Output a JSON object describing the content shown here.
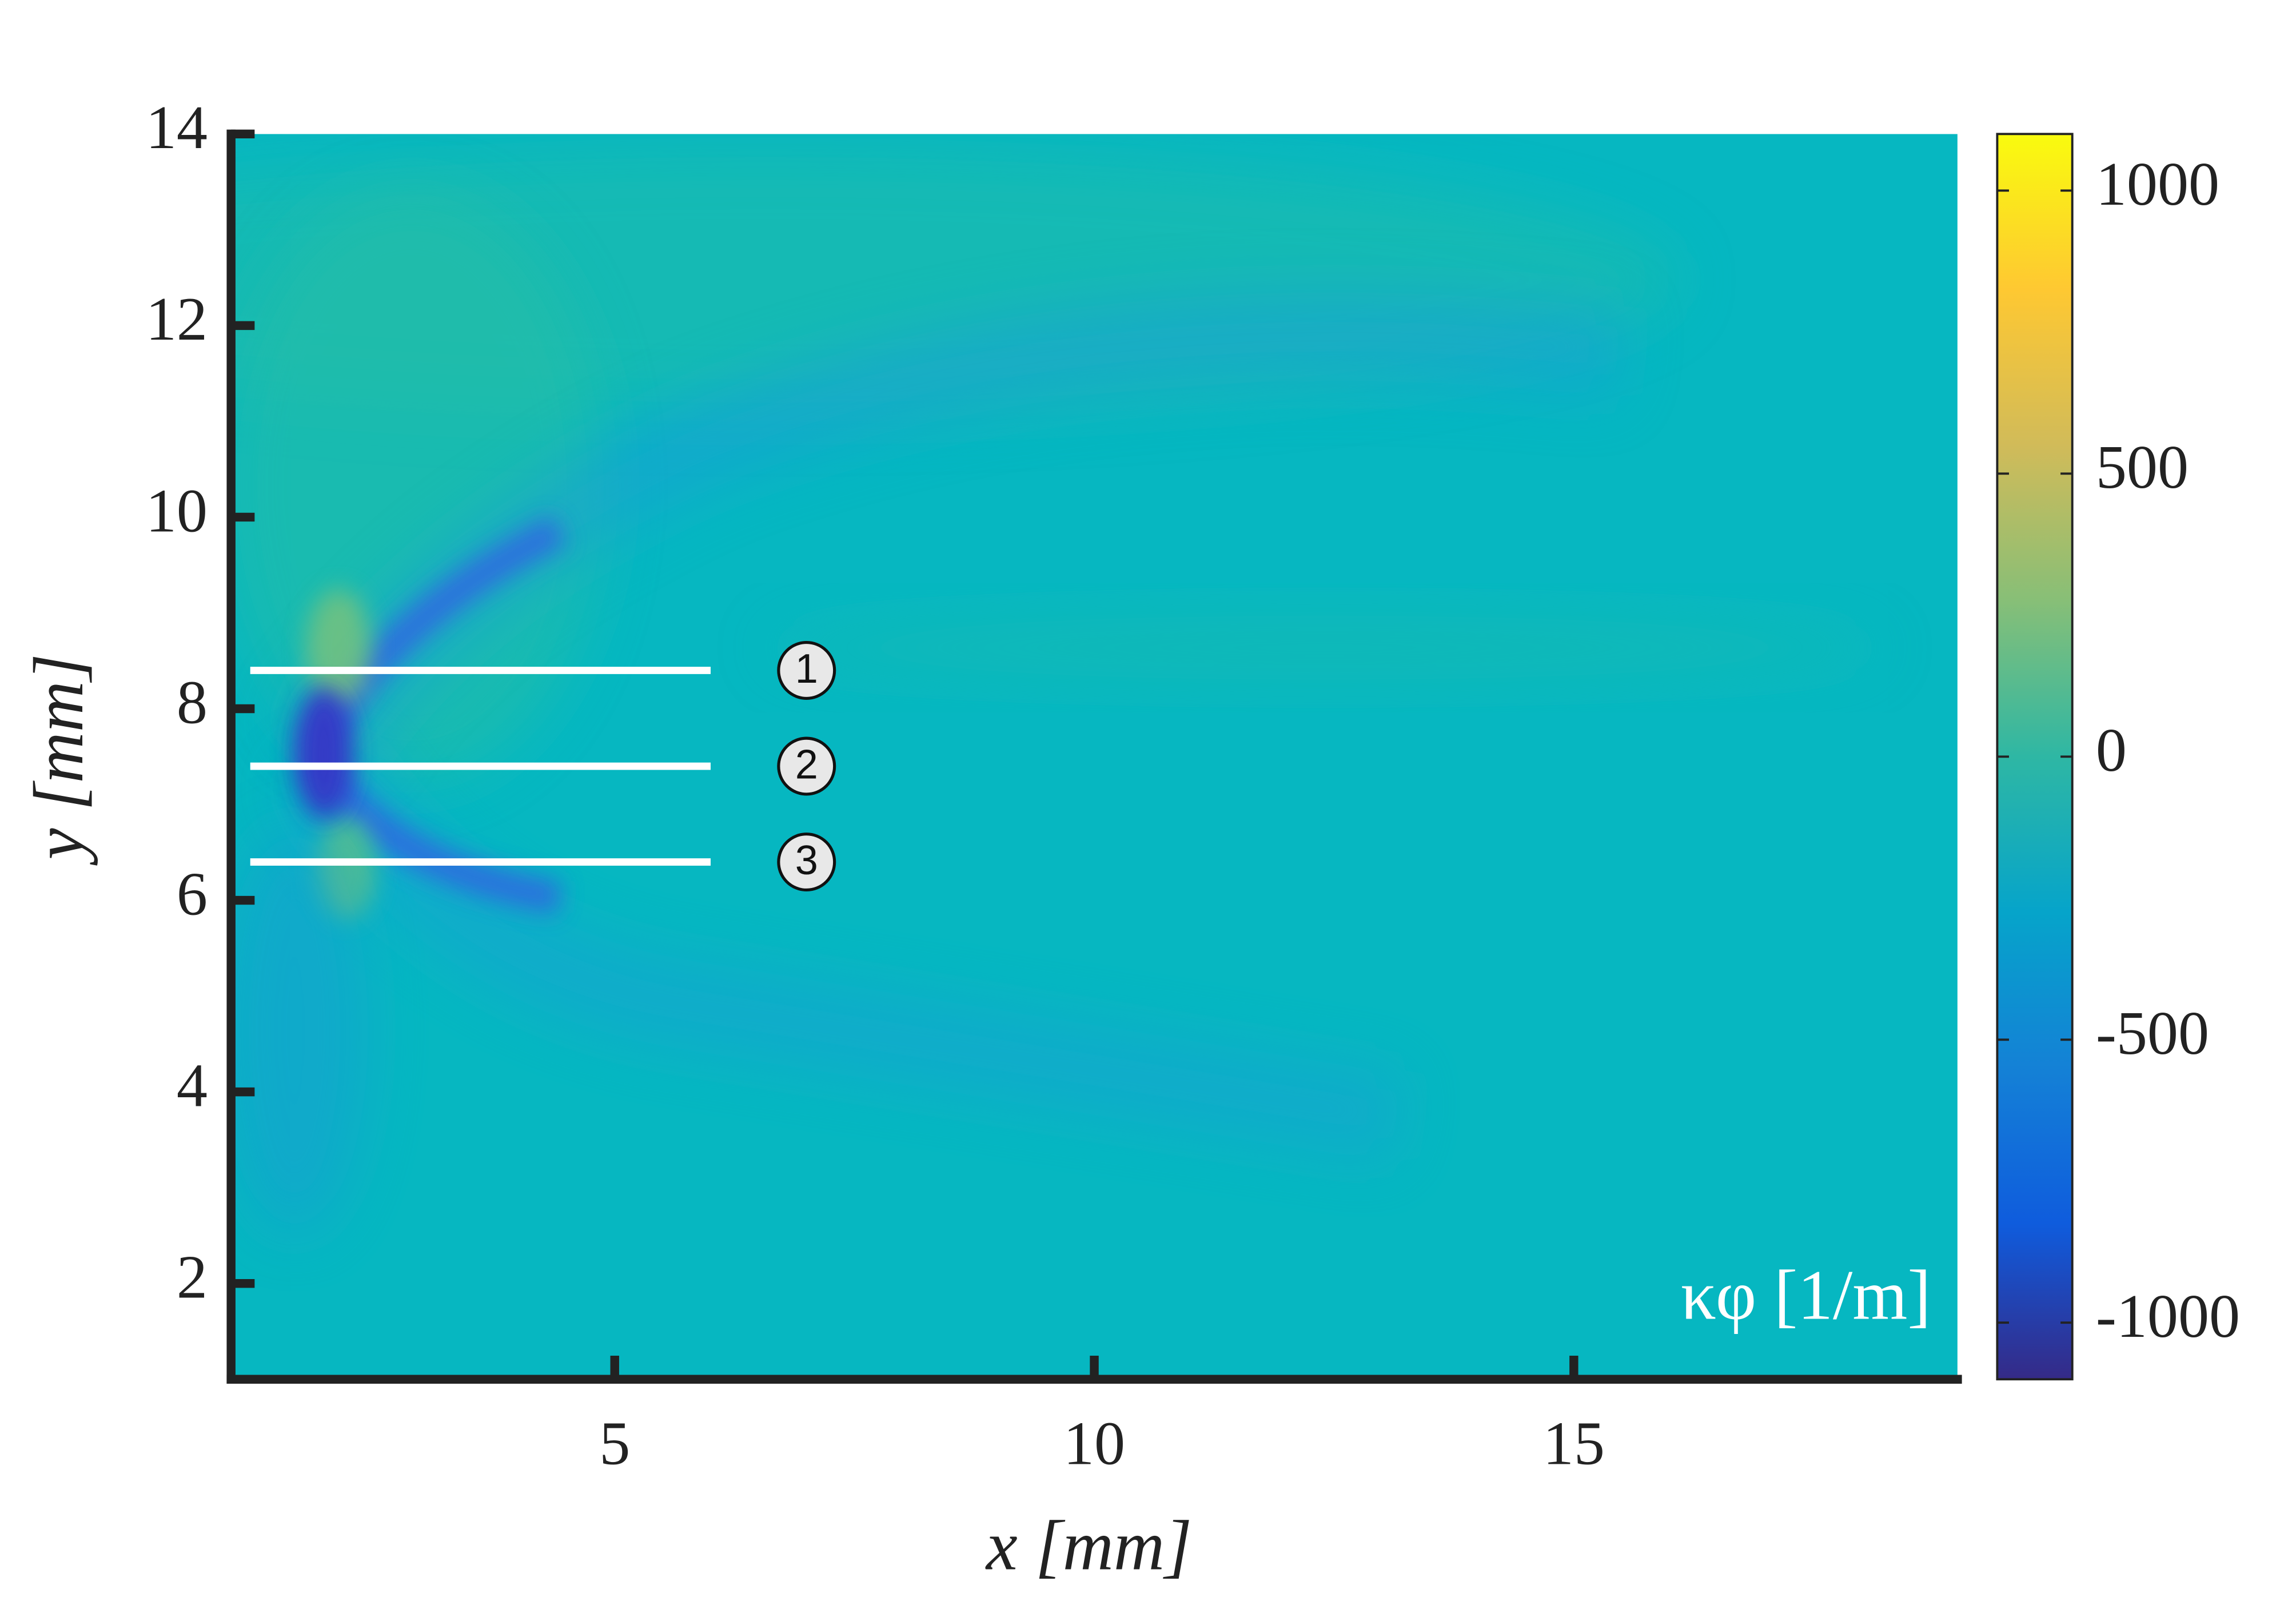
{
  "chart_data": {
    "type": "heatmap",
    "xlabel": "x [mm]",
    "ylabel": "y [mm]",
    "colorbar_label": "κφ [1/m]",
    "xlim": [
      1,
      19
    ],
    "ylim": [
      1,
      14
    ],
    "xticks": [
      5,
      10,
      15
    ],
    "yticks": [
      2,
      4,
      6,
      8,
      10,
      12,
      14
    ],
    "clim": [
      -1100,
      1100
    ],
    "cticks": [
      -1000,
      -500,
      0,
      500,
      1000
    ],
    "colormap": [
      "#352a87",
      "#0f5cdd",
      "#1481d6",
      "#06a4ca",
      "#2eb7a4",
      "#87bf77",
      "#d1bb59",
      "#fec832",
      "#f9fb0e"
    ],
    "annotations": [
      {
        "label": "1",
        "y": 8.4,
        "x0": 1.2,
        "x1": 6,
        "label_x": 7
      },
      {
        "label": "2",
        "y": 7.4,
        "x0": 1.2,
        "x1": 6,
        "label_x": 7
      },
      {
        "label": "3",
        "y": 6.4,
        "x0": 1.2,
        "x1": 6,
        "label_x": 7
      }
    ]
  }
}
